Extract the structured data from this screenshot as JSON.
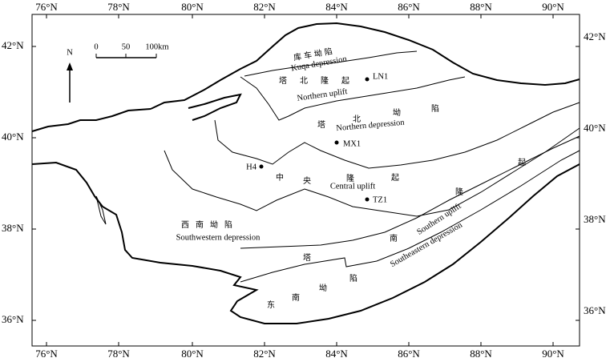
{
  "map": {
    "x_axis_labels": [
      "76°N",
      "78°N",
      "80°N",
      "82°N",
      "84°N",
      "86°N",
      "88°N",
      "90°N"
    ],
    "y_axis_labels": [
      "42°N",
      "40°N",
      "38°N",
      "36°N"
    ],
    "north": "N",
    "scale_labels": [
      "0",
      "50",
      "100km"
    ],
    "regions": {
      "kuqa_zh": "库车坳陷",
      "kuqa_en": "Kuqa depression",
      "northern_uplift_zh": "塔北隆起",
      "northern_uplift_en": "Northern uplift",
      "northern_depression_zh": [
        "塔",
        "北",
        "坳",
        "陷"
      ],
      "northern_depression_en": "Northern depression",
      "central_uplift_zh": [
        "中",
        "央",
        "隆",
        "起"
      ],
      "central_uplift_en": "Central uplift",
      "southwestern_depression_zh": "西南坳陷",
      "southwestern_depression_en": "Southwestern depression",
      "southern_uplift_zh": [
        "塔",
        "南",
        "隆",
        "起"
      ],
      "southern_uplift_en": "Southern uplift",
      "southeastern_depression_zh": [
        "东",
        "南",
        "坳",
        "陷"
      ],
      "southeastern_depression_en": "Southeastern depression"
    },
    "wells": [
      "LN1",
      "MX1",
      "H4",
      "TZ1"
    ]
  }
}
